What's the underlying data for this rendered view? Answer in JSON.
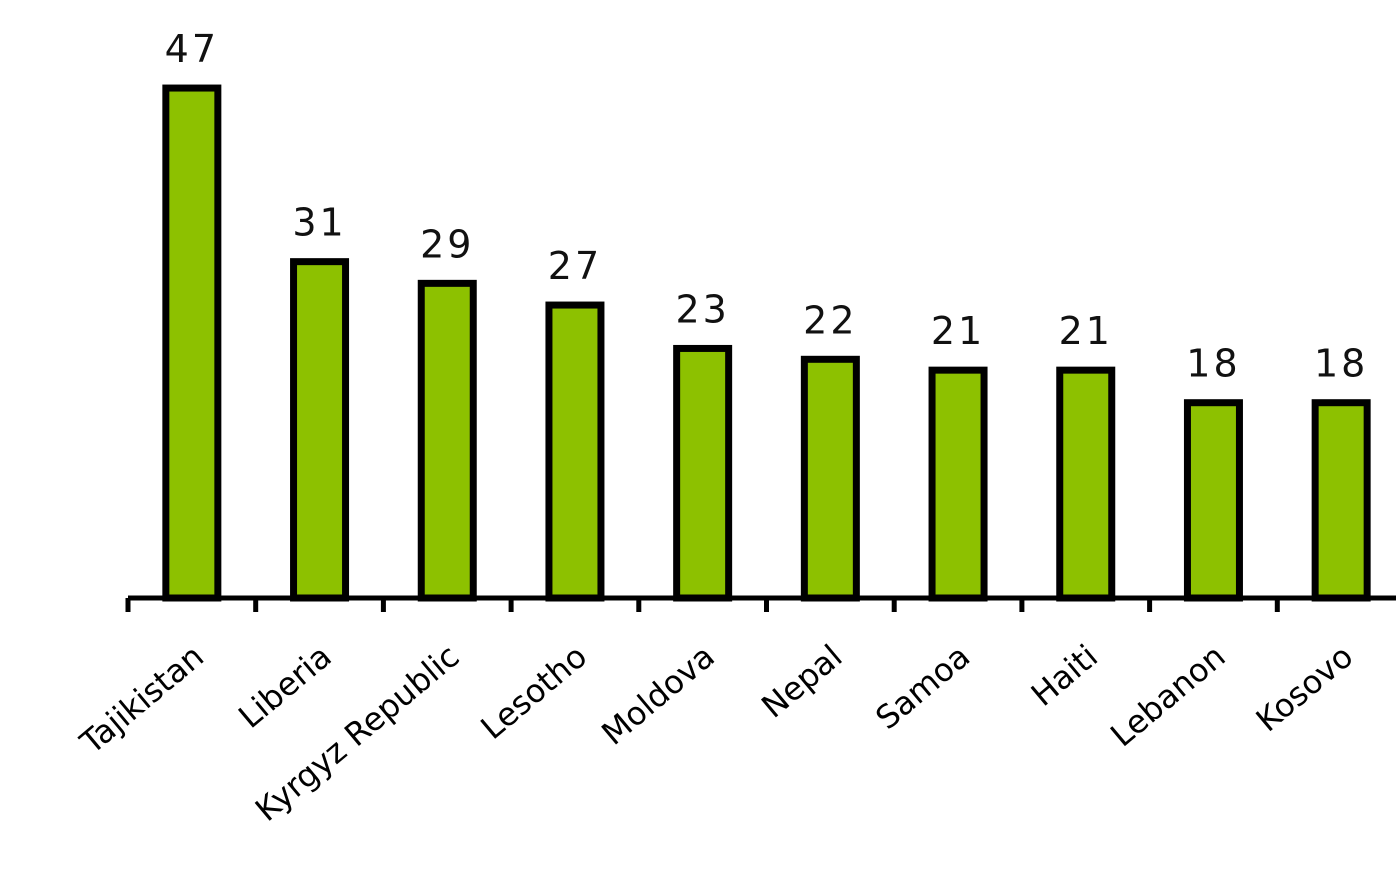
{
  "chart_data": {
    "type": "bar",
    "title": "",
    "xlabel": "",
    "ylabel": "",
    "categories": [
      "Tajikistan",
      "Liberia",
      "Kyrgyz Republic",
      "Lesotho",
      "Moldova",
      "Nepal",
      "Samoa",
      "Haiti",
      "Lebanon",
      "Kosovo"
    ],
    "values": [
      47,
      31,
      29,
      27,
      23,
      22,
      21,
      21,
      18,
      18
    ],
    "data_labels": [
      "47",
      "31",
      "29",
      "27",
      "23",
      "22",
      "21",
      "21",
      "18",
      "18"
    ],
    "ylim": [
      0,
      50
    ],
    "grid": false,
    "legend": "none",
    "bar_color": "#8dc100",
    "outline_color": "#000000"
  }
}
